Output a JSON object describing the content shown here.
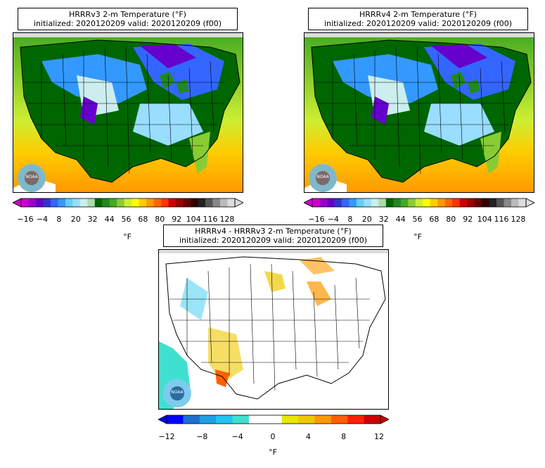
{
  "panels": [
    {
      "id": "hrrrv3",
      "title": "HRRRv3 2-m Temperature (°F)",
      "subtitle": "initialized: 2020120209 valid: 2020120209 (f00)",
      "unit": "°F",
      "colorbar_ticks": [
        "−16",
        "−4",
        "8",
        "20",
        "32",
        "44",
        "56",
        "68",
        "80",
        "92",
        "104",
        "116",
        "128"
      ]
    },
    {
      "id": "hrrrv4",
      "title": "HRRRv4 2-m Temperature (°F)",
      "subtitle": "initialized: 2020120209 valid: 2020120209 (f00)",
      "unit": "°F",
      "colorbar_ticks": [
        "−16",
        "−4",
        "8",
        "20",
        "32",
        "44",
        "56",
        "68",
        "80",
        "92",
        "104",
        "116",
        "128"
      ]
    },
    {
      "id": "diff",
      "title": "HRRRv4 - HRRRv3 2-m Temperature (°F)",
      "subtitle": "initialized: 2020120209 valid: 2020120209 (f00)",
      "unit": "°F",
      "colorbar_ticks": [
        "−12",
        "−8",
        "−4",
        "0",
        "4",
        "8",
        "12"
      ]
    }
  ],
  "temp_colors": [
    "#cc00cc",
    "#9900cc",
    "#6600cc",
    "#3333cc",
    "#3366ff",
    "#3399ff",
    "#66ccff",
    "#99ddff",
    "#cceeee",
    "#aaddaa",
    "#006600",
    "#228822",
    "#44aa22",
    "#88cc33",
    "#ccee33",
    "#ffff00",
    "#ffcc00",
    "#ff9900",
    "#ff6600",
    "#ff3300",
    "#cc0000",
    "#990000",
    "#660000",
    "#330000",
    "#222222",
    "#555555",
    "#888888",
    "#bbbbbb",
    "#dddddd"
  ],
  "diff_colors": [
    "#0000ff",
    "#1e6fd0",
    "#1e9fe6",
    "#22c5f0",
    "#40e0d0",
    "#ffffff",
    "#ffffff",
    "#e8e800",
    "#f0c800",
    "#ff9900",
    "#ff6000",
    "#ff2000",
    "#cc0000"
  ],
  "logo_text": "NOAA"
}
